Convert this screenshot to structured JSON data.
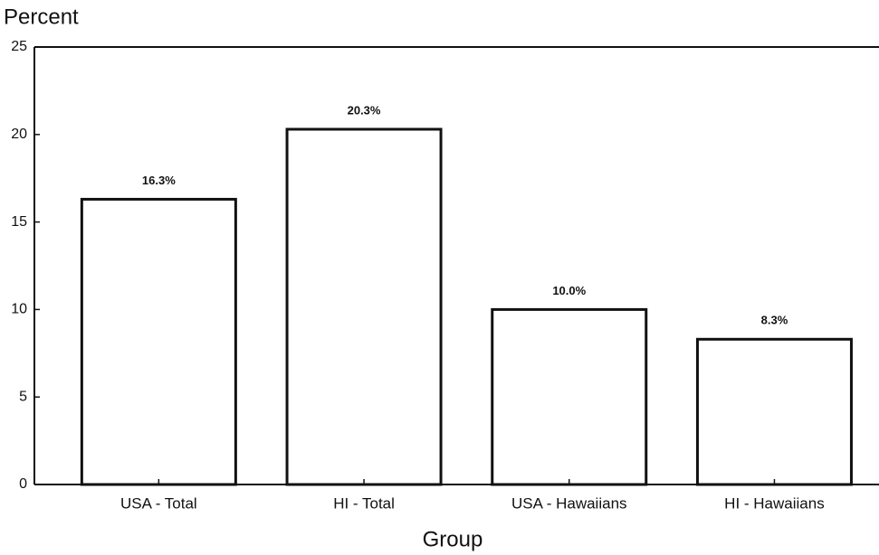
{
  "chart_data": {
    "type": "bar",
    "y_label": "Percent",
    "x_label": "Group",
    "categories": [
      "USA - Total",
      "HI - Total",
      "USA - Hawaiians",
      "HI - Hawaiians"
    ],
    "values": [
      16.3,
      20.3,
      10.0,
      8.3
    ],
    "value_labels": [
      "16.3%",
      "20.3%",
      "10.0%",
      "8.3%"
    ],
    "color": "#ffffff",
    "ylim": [
      0,
      25
    ],
    "yticks": [
      0,
      5,
      10,
      15,
      20,
      25
    ],
    "grid": false
  }
}
